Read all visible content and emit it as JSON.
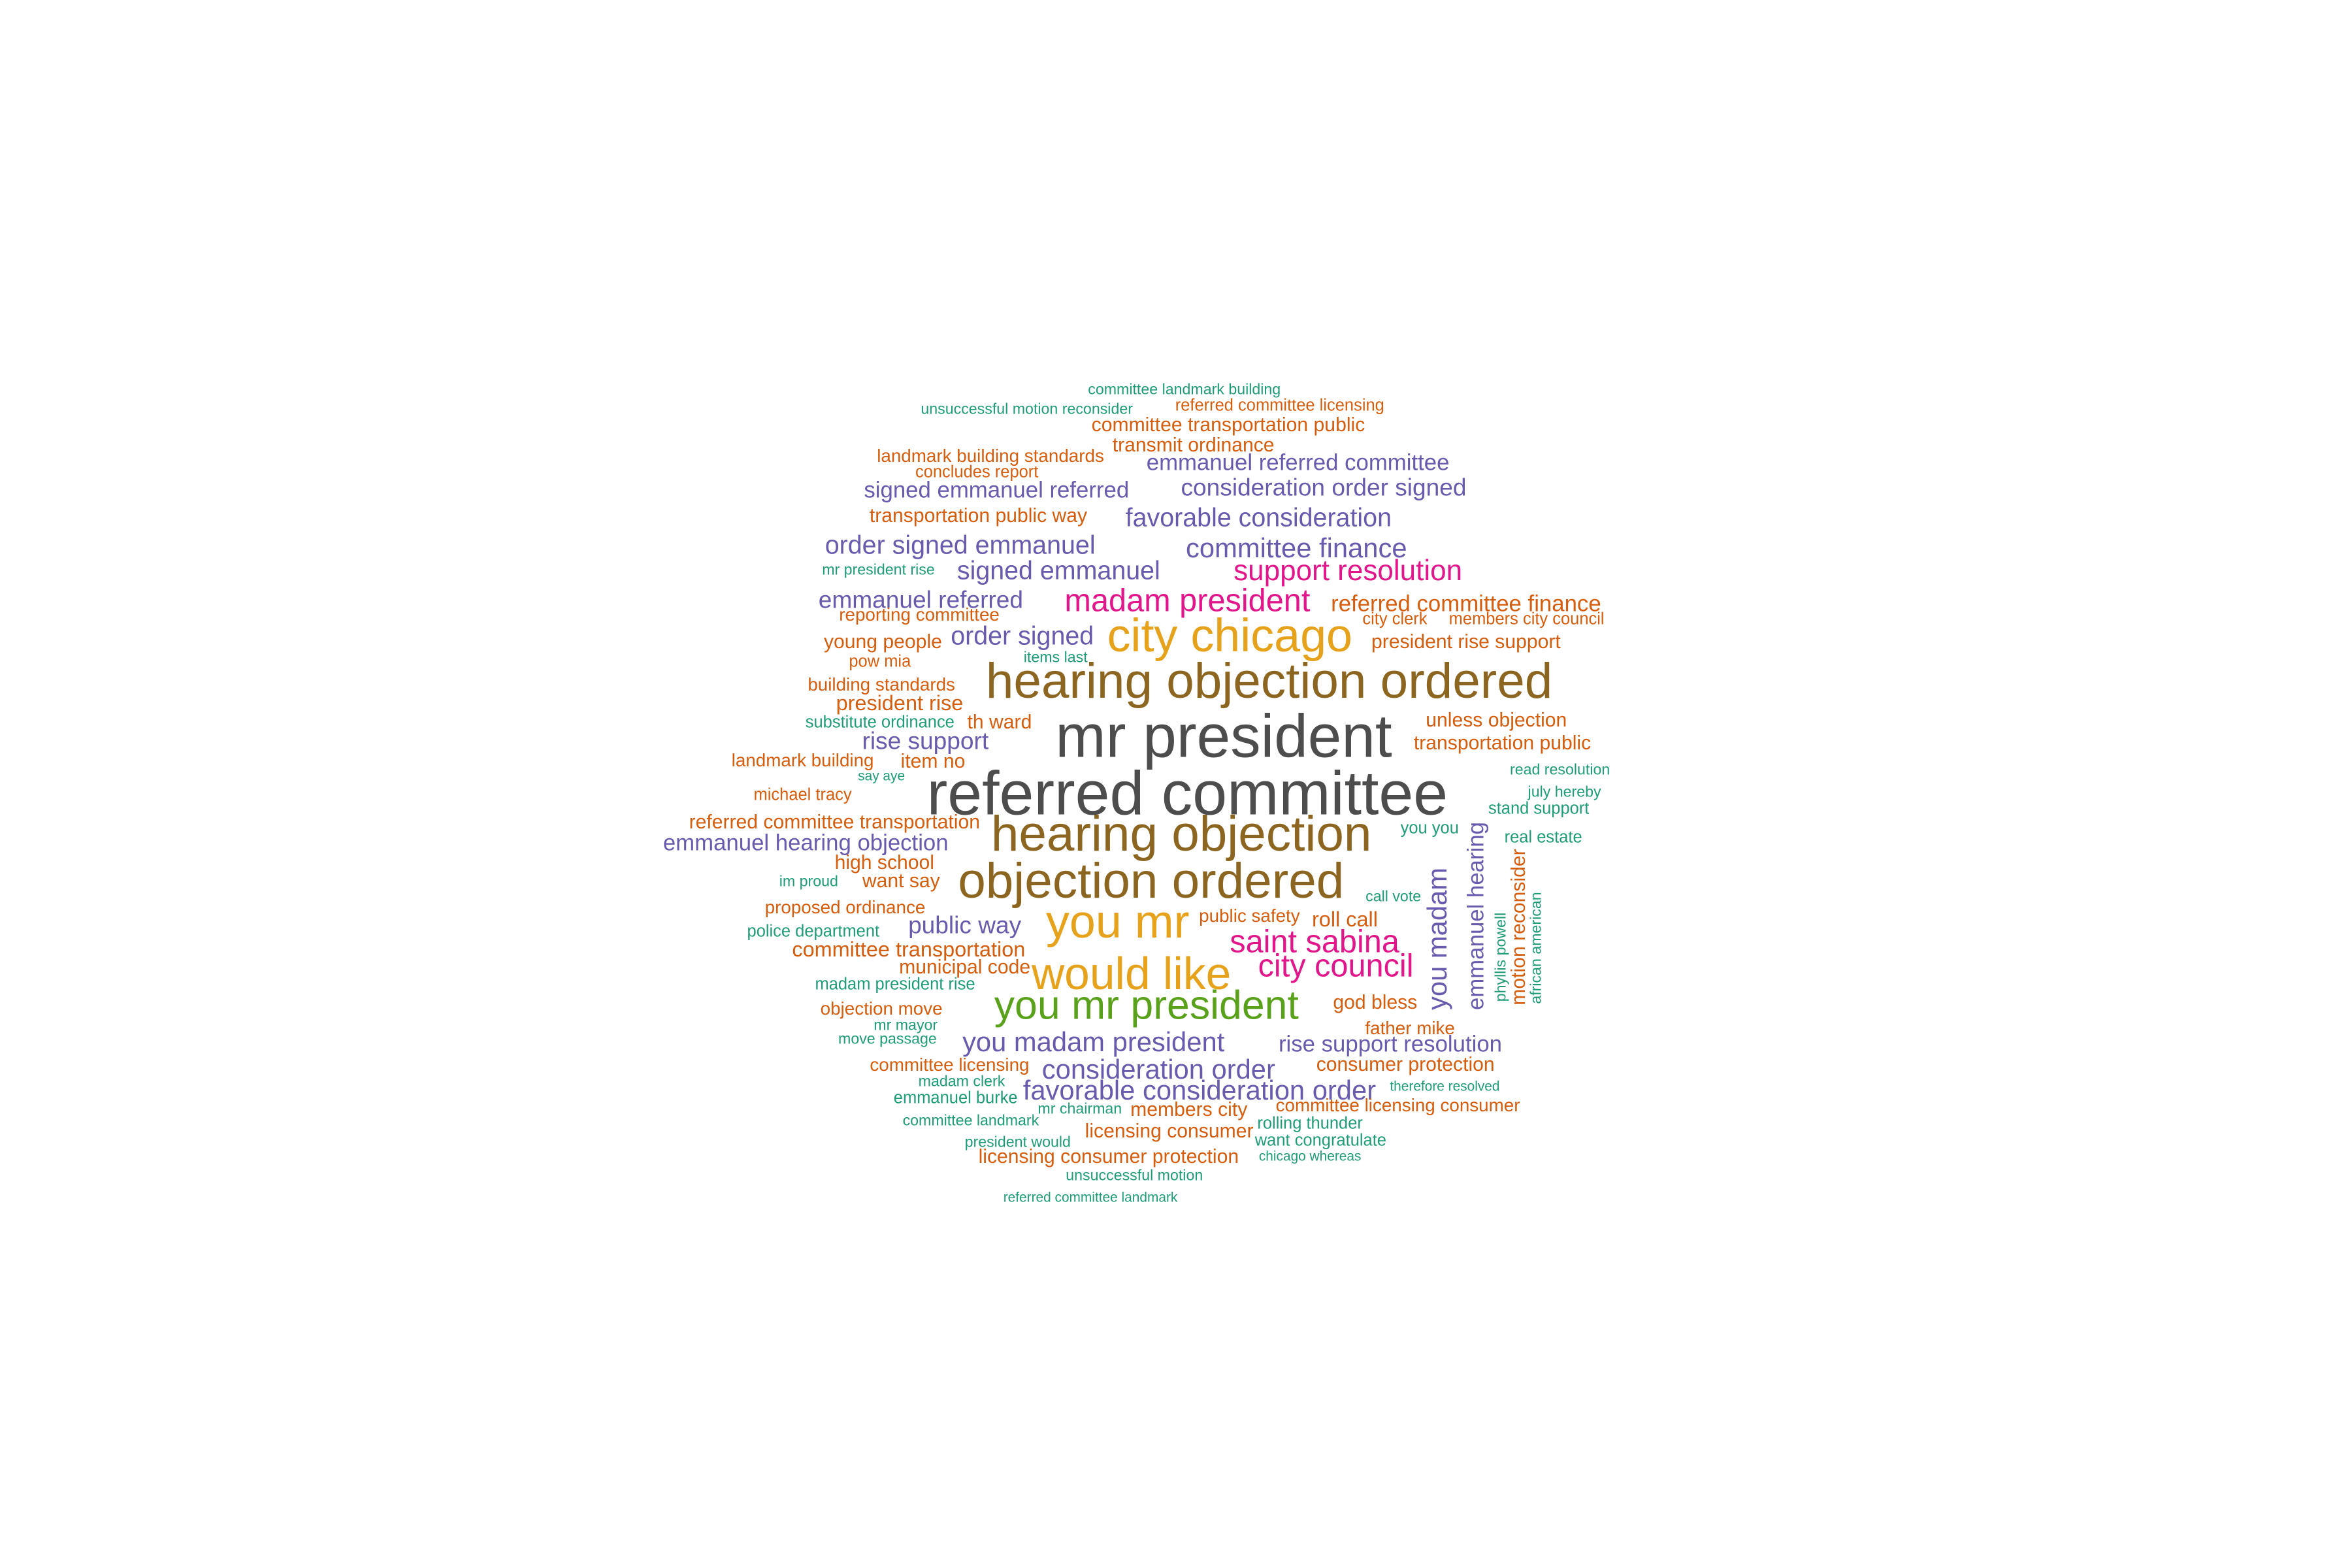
{
  "colors": {
    "background": "#ffffff",
    "dark_gray": "#4d4d4d",
    "brown": "#8c6620",
    "gold": "#e6a21a",
    "green": "#5aa11b",
    "magenta": "#e0168a",
    "purple": "#6a5aad",
    "orange": "#d55d0e",
    "teal": "#1f9c77"
  },
  "words": [
    {
      "text": "committee landmark building",
      "color": "teal"
    },
    {
      "text": "unsuccessful motion reconsider",
      "color": "teal"
    },
    {
      "text": "referred committee licensing",
      "color": "orange"
    },
    {
      "text": "committee transportation public",
      "color": "orange"
    },
    {
      "text": "transmit ordinance",
      "color": "orange"
    },
    {
      "text": "landmark building standards",
      "color": "orange"
    },
    {
      "text": "emmanuel referred committee",
      "color": "purple"
    },
    {
      "text": "concludes report",
      "color": "orange"
    },
    {
      "text": "signed emmanuel referred",
      "color": "purple"
    },
    {
      "text": "consideration order signed",
      "color": "purple"
    },
    {
      "text": "transportation public way",
      "color": "orange"
    },
    {
      "text": "favorable consideration",
      "color": "purple"
    },
    {
      "text": "order signed emmanuel",
      "color": "purple"
    },
    {
      "text": "committee finance",
      "color": "purple"
    },
    {
      "text": "mr president rise",
      "color": "teal"
    },
    {
      "text": "signed emmanuel",
      "color": "purple"
    },
    {
      "text": "support resolution",
      "color": "magenta"
    },
    {
      "text": "emmanuel referred",
      "color": "purple"
    },
    {
      "text": "madam president",
      "color": "magenta"
    },
    {
      "text": "referred committee finance",
      "color": "orange"
    },
    {
      "text": "reporting committee",
      "color": "orange"
    },
    {
      "text": "city clerk",
      "color": "orange"
    },
    {
      "text": "members city council",
      "color": "orange"
    },
    {
      "text": "order signed",
      "color": "purple"
    },
    {
      "text": "city chicago",
      "color": "gold"
    },
    {
      "text": "young people",
      "color": "orange"
    },
    {
      "text": "president rise support",
      "color": "orange"
    },
    {
      "text": "items last",
      "color": "teal"
    },
    {
      "text": "pow mia",
      "color": "orange"
    },
    {
      "text": "hearing objection ordered",
      "color": "brown"
    },
    {
      "text": "building standards",
      "color": "orange"
    },
    {
      "text": "president rise",
      "color": "orange"
    },
    {
      "text": "substitute ordinance",
      "color": "teal"
    },
    {
      "text": "th ward",
      "color": "orange"
    },
    {
      "text": "unless objection",
      "color": "orange"
    },
    {
      "text": "mr president",
      "color": "dark_gray"
    },
    {
      "text": "rise support",
      "color": "purple"
    },
    {
      "text": "transportation public",
      "color": "orange"
    },
    {
      "text": "landmark building",
      "color": "orange"
    },
    {
      "text": "item no",
      "color": "orange"
    },
    {
      "text": "read resolution",
      "color": "teal"
    },
    {
      "text": "say aye",
      "color": "teal"
    },
    {
      "text": "michael tracy",
      "color": "orange"
    },
    {
      "text": "referred committee",
      "color": "dark_gray"
    },
    {
      "text": "july hereby",
      "color": "teal"
    },
    {
      "text": "stand support",
      "color": "teal"
    },
    {
      "text": "referred committee transportation",
      "color": "orange"
    },
    {
      "text": "you you",
      "color": "teal"
    },
    {
      "text": "emmanuel hearing objection",
      "color": "purple"
    },
    {
      "text": "hearing objection",
      "color": "brown"
    },
    {
      "text": "real estate",
      "color": "teal"
    },
    {
      "text": "high school",
      "color": "orange"
    },
    {
      "text": "im proud",
      "color": "teal"
    },
    {
      "text": "want say",
      "color": "orange"
    },
    {
      "text": "objection ordered",
      "color": "brown"
    },
    {
      "text": "proposed ordinance",
      "color": "orange"
    },
    {
      "text": "call vote",
      "color": "teal"
    },
    {
      "text": "you mr",
      "color": "gold"
    },
    {
      "text": "public way",
      "color": "purple"
    },
    {
      "text": "public safety",
      "color": "orange"
    },
    {
      "text": "roll call",
      "color": "orange"
    },
    {
      "text": "police department",
      "color": "teal"
    },
    {
      "text": "committee transportation",
      "color": "orange"
    },
    {
      "text": "saint sabina",
      "color": "magenta"
    },
    {
      "text": "municipal code",
      "color": "orange"
    },
    {
      "text": "would like",
      "color": "gold"
    },
    {
      "text": "city council",
      "color": "magenta"
    },
    {
      "text": "madam president rise",
      "color": "teal"
    },
    {
      "text": "you mr president",
      "color": "green"
    },
    {
      "text": "objection move",
      "color": "orange"
    },
    {
      "text": "god bless",
      "color": "orange"
    },
    {
      "text": "mr mayor",
      "color": "teal"
    },
    {
      "text": "move passage",
      "color": "teal"
    },
    {
      "text": "father mike",
      "color": "orange"
    },
    {
      "text": "you madam president",
      "color": "purple"
    },
    {
      "text": "rise support resolution",
      "color": "purple"
    },
    {
      "text": "committee licensing",
      "color": "orange"
    },
    {
      "text": "consideration order",
      "color": "purple"
    },
    {
      "text": "consumer protection",
      "color": "orange"
    },
    {
      "text": "madam clerk",
      "color": "teal"
    },
    {
      "text": "therefore resolved",
      "color": "teal"
    },
    {
      "text": "emmanuel burke",
      "color": "teal"
    },
    {
      "text": "favorable consideration order",
      "color": "purple"
    },
    {
      "text": "mr chairman",
      "color": "teal"
    },
    {
      "text": "members city",
      "color": "orange"
    },
    {
      "text": "committee licensing consumer",
      "color": "orange"
    },
    {
      "text": "committee landmark",
      "color": "teal"
    },
    {
      "text": "rolling thunder",
      "color": "teal"
    },
    {
      "text": "licensing consumer",
      "color": "orange"
    },
    {
      "text": "president would",
      "color": "teal"
    },
    {
      "text": "want congratulate",
      "color": "teal"
    },
    {
      "text": "licensing consumer protection",
      "color": "orange"
    },
    {
      "text": "chicago whereas",
      "color": "teal"
    },
    {
      "text": "unsuccessful motion",
      "color": "teal"
    },
    {
      "text": "referred committee landmark",
      "color": "teal"
    },
    {
      "text": "you madam",
      "color": "purple"
    },
    {
      "text": "emmanuel hearing",
      "color": "purple"
    },
    {
      "text": "motion reconsider",
      "color": "orange"
    },
    {
      "text": "phyllis powell",
      "color": "teal"
    },
    {
      "text": "african american",
      "color": "teal"
    }
  ]
}
